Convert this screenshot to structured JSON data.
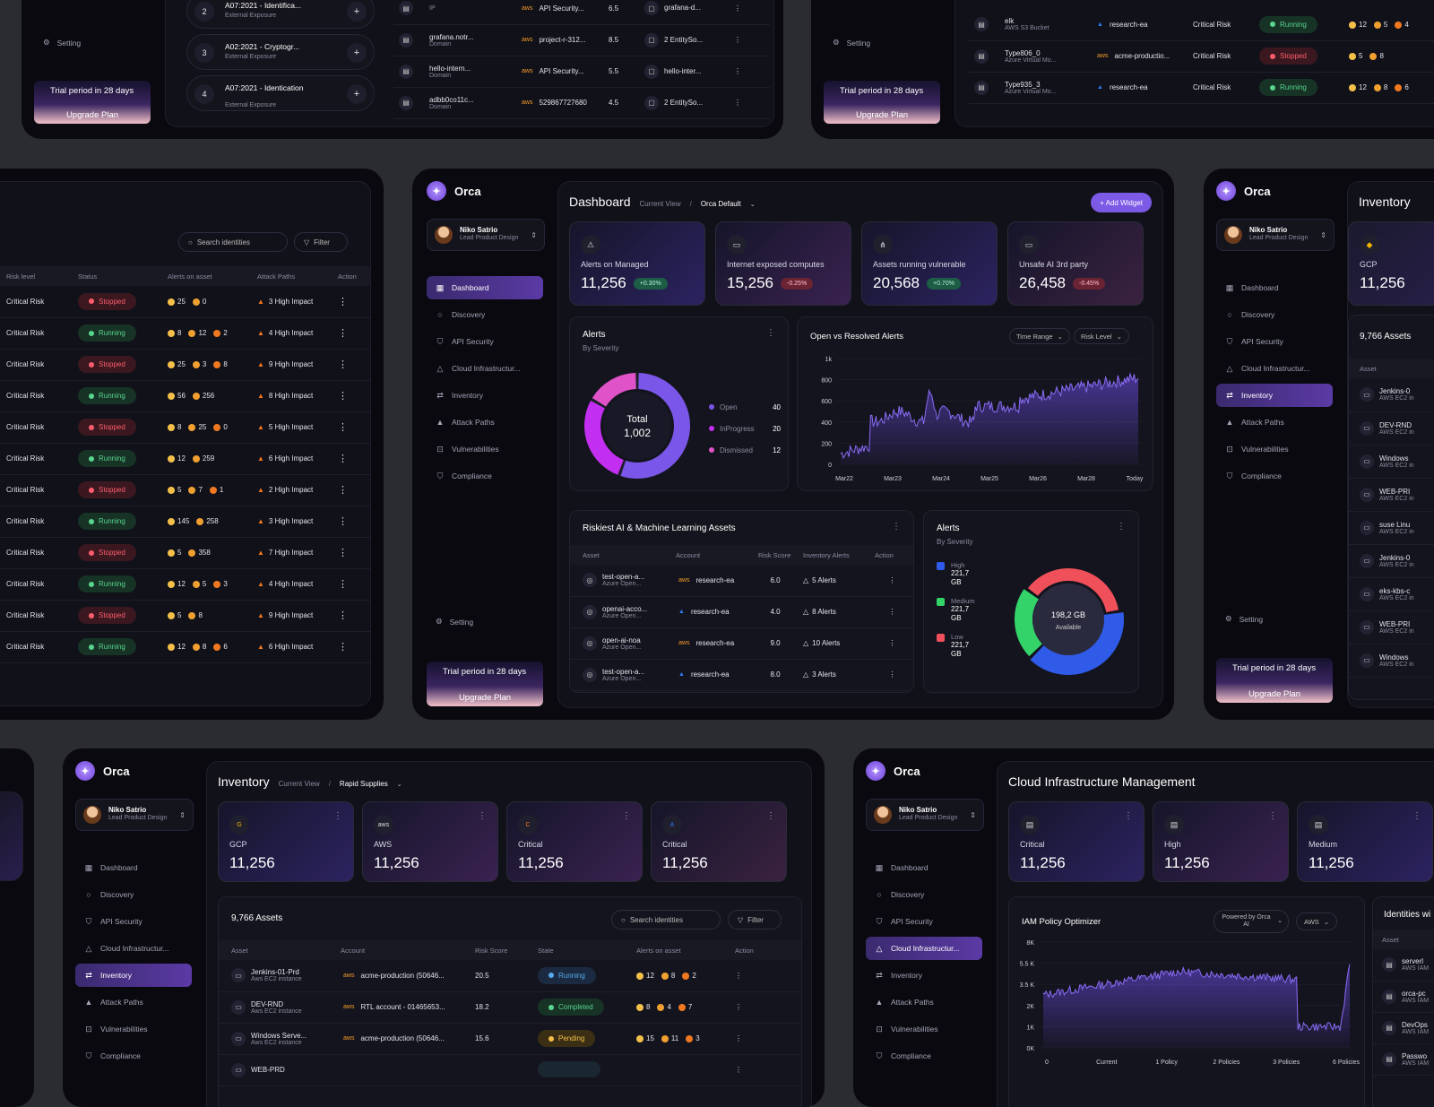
{
  "brand": {
    "name": "Orca"
  },
  "user": {
    "name": "Niko Satrio",
    "role": "Lead Product Design"
  },
  "nav": [
    "Dashboard",
    "Discovery",
    "API Security",
    "Cloud Infrastructur...",
    "Inventory",
    "Attack Paths",
    "Vulnerabilities",
    "Compliance"
  ],
  "nav_full": [
    "Dashboard",
    "Discovery",
    "API Security",
    "Cloud Infrastructure...",
    "Inventory",
    "Attack Paths",
    "Vulnerabilities",
    "Compliance"
  ],
  "setting": "Setting",
  "trial": {
    "text": "Trial period in 28 days",
    "upgrade": "Upgrade Plan"
  },
  "top_left": {
    "rank_items": [
      {
        "num": "2",
        "title": "A07:2021 - Identifica...",
        "sub": "External Exposure"
      },
      {
        "num": "3",
        "title": "A02:2021 - Cryptogr...",
        "sub": "External Exposure"
      },
      {
        "num": "4",
        "title": "A07:2021 - Identication",
        "sub": "External Exposure"
      }
    ],
    "rows": [
      {
        "asset": "",
        "type": "IP",
        "account": "API Security...",
        "score": "6.5",
        "inv": "grafana-d..."
      },
      {
        "asset": "grafana.notr...",
        "type": "Domain",
        "account": "project-r-312...",
        "score": "8.5",
        "inv": "2 EntitySo..."
      },
      {
        "asset": "hello-intern...",
        "type": "Domain",
        "account": "API Security...",
        "score": "5.5",
        "inv": "hello-inter..."
      },
      {
        "asset": "adbb0co11c...",
        "type": "Domain",
        "account": "529867727680",
        "score": "4.5",
        "inv": "2 EntitySo..."
      }
    ]
  },
  "top_right": {
    "rows": [
      {
        "asset": "elk",
        "type": "AWS S3 Bucket",
        "account": "research-ea",
        "risk": "Critical Risk",
        "state": "Running",
        "alerts": [
          "12",
          "5",
          "4"
        ]
      },
      {
        "asset": "Type806_0",
        "type": "Azure Virtual Mo...",
        "account": "acme-productio...",
        "risk": "Critical Risk",
        "state": "Stopped",
        "alerts": [
          "5",
          "8"
        ]
      },
      {
        "asset": "Type935_3",
        "type": "Azure Virtual Mo...",
        "account": "research-ea",
        "risk": "Critical Risk",
        "state": "Running",
        "alerts": [
          "12",
          "8",
          "6"
        ]
      }
    ]
  },
  "identities": {
    "search_placeholder": "Search identities",
    "filter": "Filter",
    "headers": [
      "Risk level",
      "Status",
      "Alerts on asset",
      "Attack Paths",
      "Action"
    ],
    "rows": [
      {
        "risk": "Critical Risk",
        "status": "Stopped",
        "alerts": [
          "25",
          "0"
        ],
        "paths": "3 High Impact"
      },
      {
        "risk": "Critical Risk",
        "status": "Running",
        "alerts": [
          "8",
          "12",
          "2"
        ],
        "paths": "4 High Impact"
      },
      {
        "risk": "Critical Risk",
        "status": "Stopped",
        "alerts": [
          "25",
          "3",
          "8"
        ],
        "paths": "9 High Impact"
      },
      {
        "risk": "Critical Risk",
        "status": "Running",
        "alerts": [
          "56",
          "256"
        ],
        "paths": "8 High Impact"
      },
      {
        "risk": "Critical Risk",
        "status": "Stopped",
        "alerts": [
          "8",
          "25",
          "0"
        ],
        "paths": "5 High Impact"
      },
      {
        "risk": "Critical Risk",
        "status": "Running",
        "alerts": [
          "12",
          "259"
        ],
        "paths": "6 High Impact"
      },
      {
        "risk": "Critical Risk",
        "status": "Stopped",
        "alerts": [
          "5",
          "7",
          "1"
        ],
        "paths": "2 High Impact"
      },
      {
        "risk": "Critical Risk",
        "status": "Running",
        "alerts": [
          "145",
          "258"
        ],
        "paths": "3 High Impact"
      },
      {
        "risk": "Critical Risk",
        "status": "Stopped",
        "alerts": [
          "5",
          "358"
        ],
        "paths": "7 High Impact"
      },
      {
        "risk": "Critical Risk",
        "status": "Running",
        "alerts": [
          "12",
          "5",
          "3"
        ],
        "paths": "4 High Impact"
      },
      {
        "risk": "Critical Risk",
        "status": "Stopped",
        "alerts": [
          "5",
          "8"
        ],
        "paths": "9 High Impact"
      },
      {
        "risk": "Critical Risk",
        "status": "Running",
        "alerts": [
          "12",
          "8",
          "6"
        ],
        "paths": "6 High Impact"
      }
    ]
  },
  "dashboard": {
    "title": "Dashboard",
    "view_label": "Current View",
    "view_value": "Orca Default",
    "add_widget": "+ Add Widget",
    "stats": [
      {
        "label": "Alerts on Managed",
        "value": "11,256",
        "change": "+0.30%",
        "dir": "pos"
      },
      {
        "label": "Internet exposed computes",
        "value": "15,256",
        "change": "-0.25%",
        "dir": "neg"
      },
      {
        "label": "Assets running vulnerable",
        "value": "20,568",
        "change": "+0.70%",
        "dir": "pos"
      },
      {
        "label": "Unsafe AI 3rd party",
        "value": "26,458",
        "change": "-0.45%",
        "dir": "neg"
      }
    ],
    "alerts_card": {
      "title": "Alerts",
      "subtitle": "By Severity",
      "center_label": "Total",
      "center_value": "1,002",
      "legend": [
        {
          "label": "Open",
          "value": "40",
          "color": "#7a57e8"
        },
        {
          "label": "InProgress",
          "value": "20",
          "color": "#c32ff0"
        },
        {
          "label": "Dismissed",
          "value": "12",
          "color": "#e052c8"
        }
      ]
    },
    "line_card": {
      "title": "Open vs Resolved Alerts",
      "time_range": "Time Range",
      "risk_level": "Risk Level",
      "y_ticks": [
        "1k",
        "800",
        "600",
        "400",
        "200",
        "0"
      ],
      "x_ticks": [
        "Mar22",
        "Mar23",
        "Mar24",
        "Mar25",
        "Mar26",
        "Mar28",
        "Today"
      ]
    },
    "ai_assets": {
      "title": "Riskiest AI & Machine Learning Assets",
      "headers": [
        "Asset",
        "Account",
        "Risk Score",
        "Inventory Alerts",
        "Action"
      ],
      "rows": [
        {
          "asset": "test-open-a...",
          "type": "Azure Open...",
          "provider": "aws",
          "account": "research-ea",
          "score": "6.0",
          "alerts": "5 Alerts"
        },
        {
          "asset": "openai-acco...",
          "type": "Azure Open...",
          "provider": "azure",
          "account": "research-ea",
          "score": "4.0",
          "alerts": "8 Alerts"
        },
        {
          "asset": "open-ai-noa",
          "type": "Azure Open...",
          "provider": "aws",
          "account": "research-ea",
          "score": "9.0",
          "alerts": "10 Alerts"
        },
        {
          "asset": "test-open-a...",
          "type": "Azure Open...",
          "provider": "azure",
          "account": "research-ea",
          "score": "8.0",
          "alerts": "3 Alerts"
        }
      ]
    },
    "alerts2": {
      "title": "Alerts",
      "subtitle": "By Severity",
      "legend": [
        {
          "label": "High",
          "value": "221,7 GB",
          "color": "#2f5be8"
        },
        {
          "label": "Medium",
          "value": "221,7 GB",
          "color": "#34d36a"
        },
        {
          "label": "Low",
          "value": "221,7 GB",
          "color": "#f0505a"
        }
      ],
      "center_value": "198,2 GB",
      "center_label": "Available"
    }
  },
  "inventory_right": {
    "title": "Inventory",
    "provider": "GCP",
    "value": "11,256",
    "assets": "9,766 Assets",
    "col": "Asset",
    "rows": [
      {
        "a": "Jenkins-0",
        "t": "AWS EC2 in"
      },
      {
        "a": "DEV-RND",
        "t": "AWS EC2 in"
      },
      {
        "a": "Windows",
        "t": "AWS EC2 in"
      },
      {
        "a": "WEB-PRI",
        "t": "AWS EC2 in"
      },
      {
        "a": "suse Linu",
        "t": "AWS EC2 in"
      },
      {
        "a": "Jenkins-0",
        "t": "AWS EC2 in"
      },
      {
        "a": "eks-kbs-c",
        "t": "AWS EC2 in"
      },
      {
        "a": "WEB-PRI",
        "t": "AWS EC2 in"
      },
      {
        "a": "Windows",
        "t": "AWS EC2 in"
      }
    ]
  },
  "inventory": {
    "title": "Inventory",
    "view_label": "Current View",
    "view_value": "Rapid Supplies",
    "stats": [
      {
        "label": "GCP",
        "value": "11,256",
        "icon": "G"
      },
      {
        "label": "AWS",
        "value": "11,256",
        "icon": "aws"
      },
      {
        "label": "Critical",
        "value": "11,256",
        "icon": "C"
      },
      {
        "label": "Critical",
        "value": "11,256",
        "icon": "A"
      }
    ],
    "assets_title": "9,766 Assets",
    "search_placeholder": "Search identities",
    "filter": "Filter",
    "headers": [
      "Asset",
      "Account",
      "Risk Score",
      "State",
      "Alerts on asset",
      "Action"
    ],
    "rows": [
      {
        "asset": "Jenkins-01-Prd",
        "type": "Aws EC2 instance",
        "account": "acme-production (50646...",
        "score": "20.5",
        "state": "Running",
        "alerts": [
          "12",
          "8",
          "2"
        ]
      },
      {
        "asset": "DEV-RND",
        "type": "Aws EC2 instance",
        "account": "RTL account - 01465653...",
        "score": "18.2",
        "state": "Completed",
        "alerts": [
          "8",
          "4",
          "7"
        ]
      },
      {
        "asset": "Windows Serve...",
        "type": "Aws EC2 instance",
        "account": "acme-production (50646...",
        "score": "15.6",
        "state": "Pending",
        "alerts": [
          "15",
          "11",
          "3"
        ]
      },
      {
        "asset": "WEB-PRD",
        "type": "",
        "account": "",
        "score": "",
        "state": "",
        "alerts": []
      }
    ]
  },
  "cloud": {
    "title": "Cloud Infrastructure Management",
    "stats": [
      {
        "label": "Critical",
        "value": "11,256"
      },
      {
        "label": "High",
        "value": "11,256"
      },
      {
        "label": "Medium",
        "value": "11,256"
      }
    ],
    "iam": {
      "title": "IAM Policy Optimizer",
      "powered": "Powered by Orca AI",
      "provider": "AWS",
      "y_ticks": [
        "8K",
        "5.5 K",
        "3.5 K",
        "2K",
        "1K",
        "0K"
      ],
      "x_ticks": [
        "0",
        "Current",
        "1 Policy",
        "2 Policies",
        "3 Policies",
        "6 Policies"
      ]
    },
    "identities": {
      "title": "Identities wi",
      "col": "Asset",
      "rows": [
        {
          "a": "serverl",
          "t": "AWS IAM"
        },
        {
          "a": "orca-pc",
          "t": "AWS IAM"
        },
        {
          "a": "DevOps",
          "t": "AWS IAM"
        },
        {
          "a": "Passwo",
          "t": "AWS IAM"
        }
      ]
    }
  }
}
